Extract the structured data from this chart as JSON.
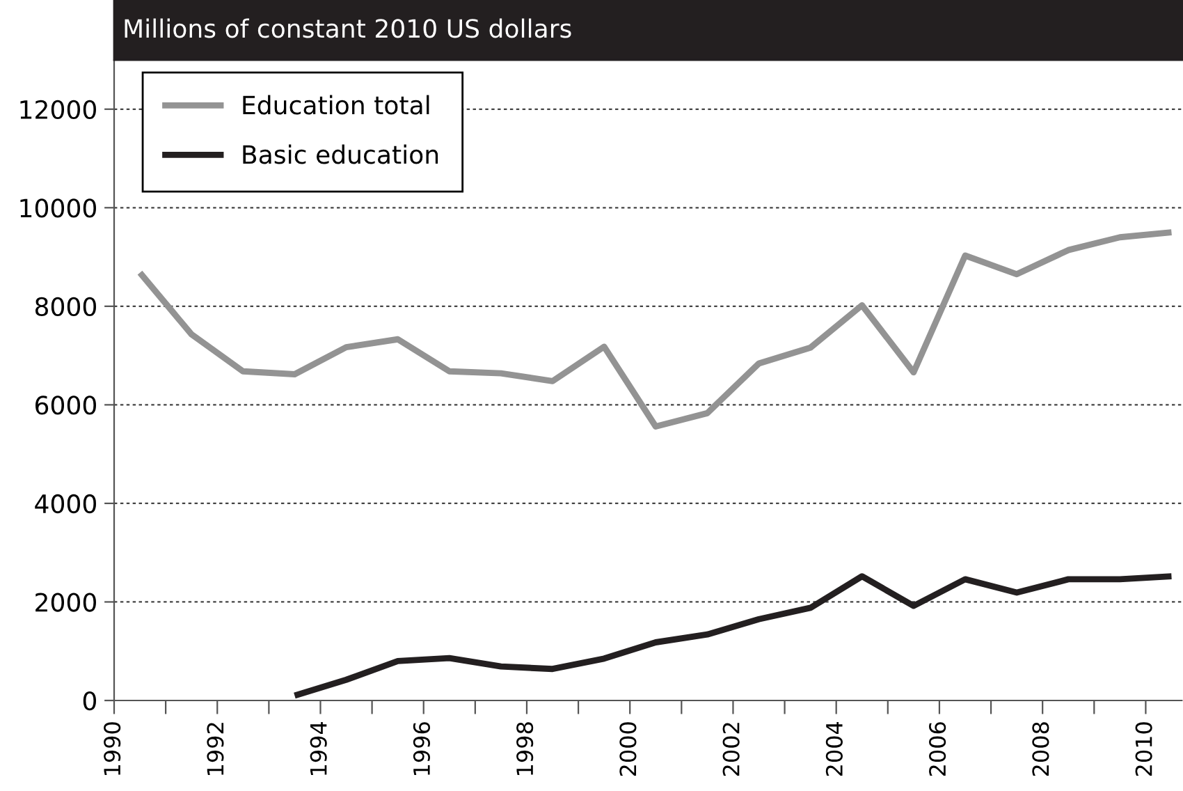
{
  "chart_data": {
    "type": "line",
    "title": "Millions of constant 2010 US dollars",
    "xlim": [
      1990,
      2010.7
    ],
    "xticks": [
      1990,
      {
        "value": 1991,
        "label": null
      },
      1992,
      {
        "value": 1993,
        "label": null
      },
      1994,
      {
        "value": 1995,
        "label": null
      },
      1996,
      {
        "value": 1997,
        "label": null
      },
      1998,
      {
        "value": 1999,
        "label": null
      },
      2000,
      {
        "value": 2001,
        "label": null
      },
      2002,
      {
        "value": 2003,
        "label": null
      },
      2004,
      {
        "value": 2005,
        "label": null
      },
      2006,
      {
        "value": 2007,
        "label": null
      },
      2008,
      {
        "value": 2009,
        "label": null
      },
      2010
    ],
    "ylim": [
      0,
      13000
    ],
    "yticks": [
      0,
      2000,
      4000,
      6000,
      8000,
      10000,
      12000
    ],
    "grid": "y",
    "legend": "top left",
    "marker": "none",
    "line_style": "solid",
    "series": [
      {
        "name": "Education total",
        "color": "#939393",
        "x": [
          1990.5,
          1991.5,
          1992.5,
          1993.5,
          1994.5,
          1995.5,
          1996.5,
          1997.5,
          1998.5,
          1999.5,
          2000.5,
          2001.5,
          2002.5,
          2003.5,
          2004.5,
          2005.5,
          2006.5,
          2007.5,
          2008.5,
          2009.5,
          2010.5
        ],
        "values": [
          8680,
          7430,
          6680,
          6620,
          7170,
          7330,
          6680,
          6640,
          6480,
          7180,
          5560,
          5830,
          6840,
          7160,
          8020,
          6660,
          9030,
          8650,
          9140,
          9400,
          9500
        ]
      },
      {
        "name": "Basic education",
        "color": "#231f20",
        "x": [
          1993.5,
          1994.5,
          1995.5,
          1996.5,
          1997.5,
          1998.5,
          1999.5,
          2000.5,
          2001.5,
          2002.5,
          2003.5,
          2004.5,
          2005.5,
          2006.5,
          2007.5,
          2008.5,
          2009.5,
          2010.5
        ],
        "values": [
          100,
          420,
          800,
          860,
          690,
          640,
          850,
          1180,
          1340,
          1650,
          1880,
          2520,
          1920,
          2460,
          2190,
          2460,
          2460,
          2520
        ]
      }
    ]
  }
}
